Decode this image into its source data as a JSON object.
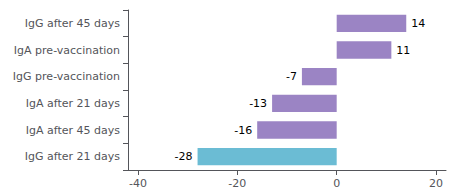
{
  "chart_data": {
    "type": "bar",
    "orientation": "horizontal",
    "categories": [
      "IgG after 45 days",
      "IgA pre-vaccination",
      "IgG pre-vaccination",
      "IgA after 21 days",
      "IgA after 45 days",
      "IgG after 21 days"
    ],
    "values": [
      14,
      11,
      -7,
      -13,
      -16,
      -28
    ],
    "colors": [
      "#9b84c4",
      "#9b84c4",
      "#9b84c4",
      "#9b84c4",
      "#9b84c4",
      "#6bbcd4"
    ],
    "xlim": [
      -42,
      22
    ],
    "xticks": [
      -40,
      -20,
      0,
      20
    ],
    "data_labels": true,
    "grid": false
  }
}
